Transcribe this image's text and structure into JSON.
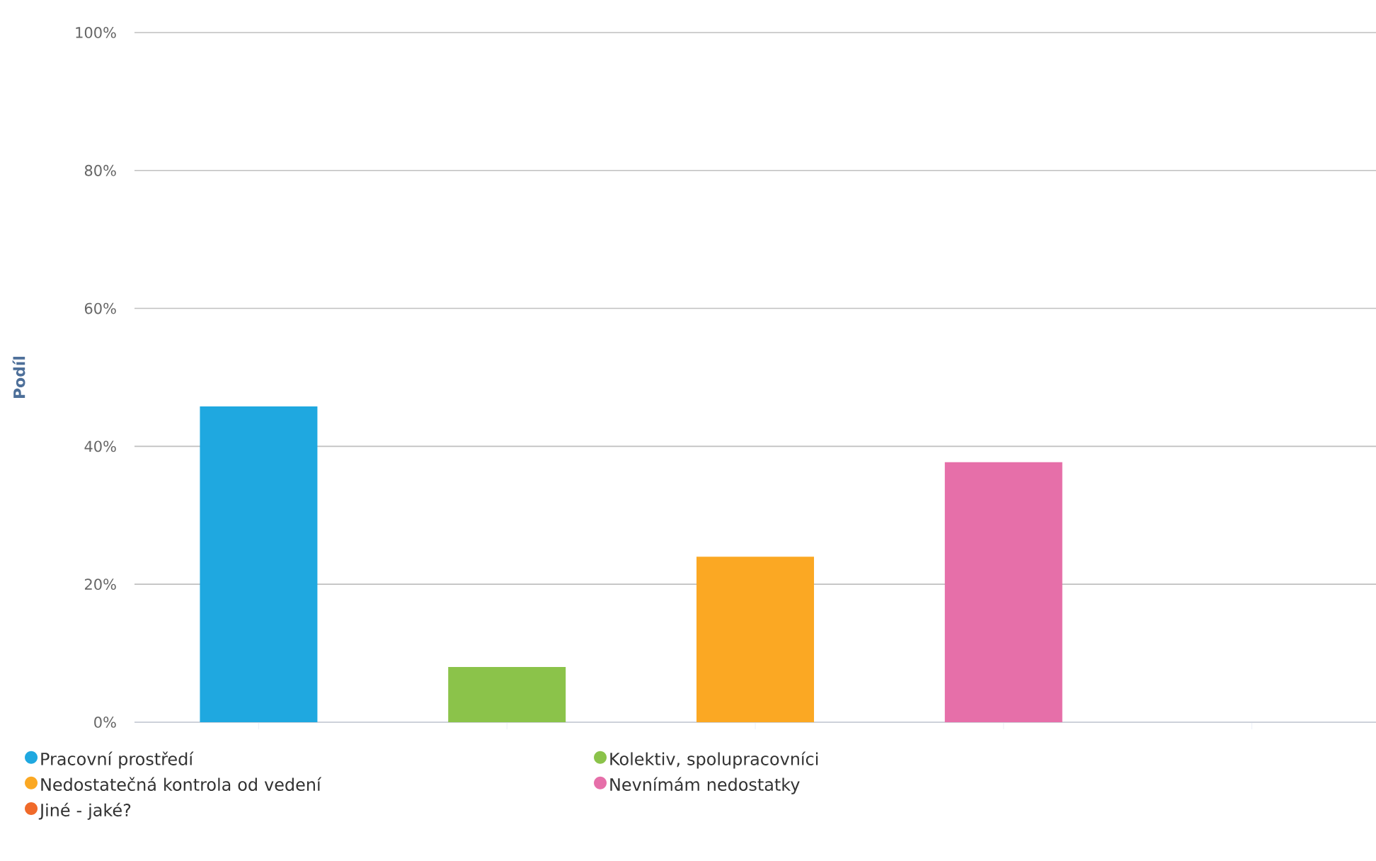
{
  "chart_data": {
    "type": "bar",
    "ylabel": "Podíl",
    "categories": [
      null,
      null,
      null,
      null,
      null
    ],
    "series": [
      {
        "name": "Pracovní prostředí",
        "color": "#1fa8e0",
        "values": [
          45.8,
          null,
          null,
          null,
          null
        ]
      },
      {
        "name": "Kolektiv, spolupracovníci",
        "color": "#8bc34a",
        "values": [
          null,
          8.0,
          null,
          null,
          null
        ]
      },
      {
        "name": "Nedostatečná kontrola od vedení",
        "color": "#fba823",
        "values": [
          null,
          null,
          24.0,
          null,
          null
        ]
      },
      {
        "name": "Nevnímám nedostatky",
        "color": "#e66fa9",
        "values": [
          null,
          null,
          null,
          37.7,
          null
        ]
      },
      {
        "name": "Jiné - jaké?",
        "color": "#f06a2a",
        "values": [
          null,
          null,
          null,
          null,
          0
        ]
      }
    ],
    "ylim": [
      0,
      100
    ],
    "yticks": [
      {
        "value": 0,
        "label": "0%"
      },
      {
        "value": 20,
        "label": "20%"
      },
      {
        "value": 40,
        "label": "40%"
      },
      {
        "value": 60,
        "label": "60%"
      },
      {
        "value": 80,
        "label": "80%"
      },
      {
        "value": 100,
        "label": "100%"
      }
    ],
    "grid": "y",
    "legend": "bottom"
  }
}
